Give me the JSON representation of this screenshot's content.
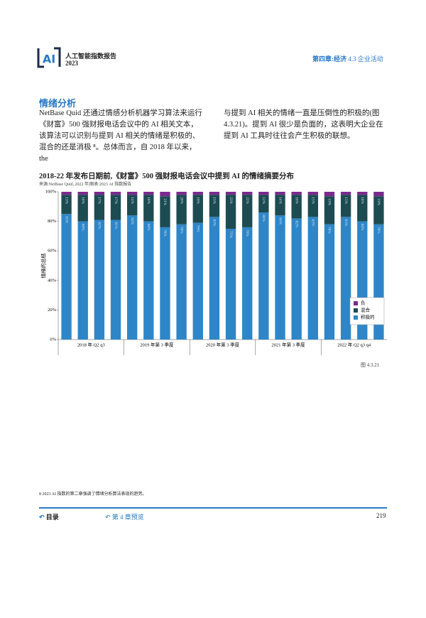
{
  "header": {
    "title": "人工智能指数报告",
    "year": "2023",
    "chapter": "第四章:经济",
    "section": "4.3 企业活动"
  },
  "section_title": "情绪分析",
  "paragraph_left": "NetBase Quid 还通过情感分析机器学习算法来运行《财富》500 强财报电话会议中的 AI 相关文本，该算法可以识别与提到 AI 相关的情绪是积极的、混合的还是消极 ⁸。总体而言，自 2018 年以来，the",
  "paragraph_right": "与提到 AI 相关的情绪一直是压倒性的积极的(图 4.3.21)。提到 AI 很少是负面的，这表明大企业在提到 AI 工具时往往会产生积极的联想。",
  "chart_data": {
    "type": "stacked-bar",
    "title": "2018-22 年发布日期前,《财富》500 强财报电话会议中提到 AI 的情绪摘要分布",
    "subtitle": "来源:NetBase Quid, 2022 年|图表:2023 AI 指数报告",
    "y_label": "情绪的总结",
    "groups": [
      "2018 年 Q2 q3",
      "2019 年第 3 季度",
      "2020 年第 3 季度",
      "2021 年第 3 季度",
      "2022 年 Q2 q3 q4"
    ],
    "series": [
      {
        "name": "积极的",
        "color": "#2e86c8",
        "values": [
          85,
          80,
          81,
          81,
          84,
          80,
          76,
          78,
          79,
          83,
          75,
          76,
          86,
          84,
          82,
          83,
          78,
          83,
          80,
          78
        ],
        "value_labels": [
          "85%",
          "80%",
          "81%",
          "81%",
          "84%",
          "80%",
          "76%",
          "78%",
          "79%",
          "83%",
          "75%",
          "76%",
          "86%",
          "84%",
          "82%",
          "83%",
          "78%",
          "83%",
          "80%",
          "78%"
        ]
      },
      {
        "name": "混合",
        "color": "#1d4b52",
        "values": [
          13,
          18,
          17,
          17,
          14,
          18,
          21,
          20,
          19,
          15,
          23,
          22,
          12,
          14,
          16,
          15,
          19,
          15,
          18,
          19
        ],
        "value_labels": [
          "13%",
          "18%",
          "17%",
          "17%",
          "14%",
          "18%",
          "21%",
          "20%",
          "19%",
          "15%",
          "23%",
          "22%",
          "12%",
          "14%",
          "16%",
          "15%",
          "19%",
          "15%",
          "18%",
          "19%"
        ]
      },
      {
        "name": "负",
        "color": "#7b2a8e",
        "values": [
          2,
          2,
          2,
          2,
          2,
          2,
          3,
          2,
          2,
          2,
          2,
          2,
          2,
          2,
          2,
          2,
          3,
          2,
          2,
          3
        ]
      }
    ],
    "ylim": [
      0,
      100
    ],
    "yticks": [
      {
        "value": 0,
        "label": "0%"
      },
      {
        "value": 20,
        "label": "20%"
      },
      {
        "value": 40,
        "label": "40%"
      },
      {
        "value": 60,
        "label": "60%"
      },
      {
        "value": 80,
        "label": "80%"
      },
      {
        "value": 100,
        "label": "100%"
      }
    ],
    "legend": "bottom-right"
  },
  "figure_label": "图 4.3.21",
  "footnote": "8 2023 AI 指数的第二章强调了情绪分析算法表现的趋势。",
  "footer": {
    "toc": "目录",
    "preview": "第 4 章预览",
    "page": "219"
  }
}
